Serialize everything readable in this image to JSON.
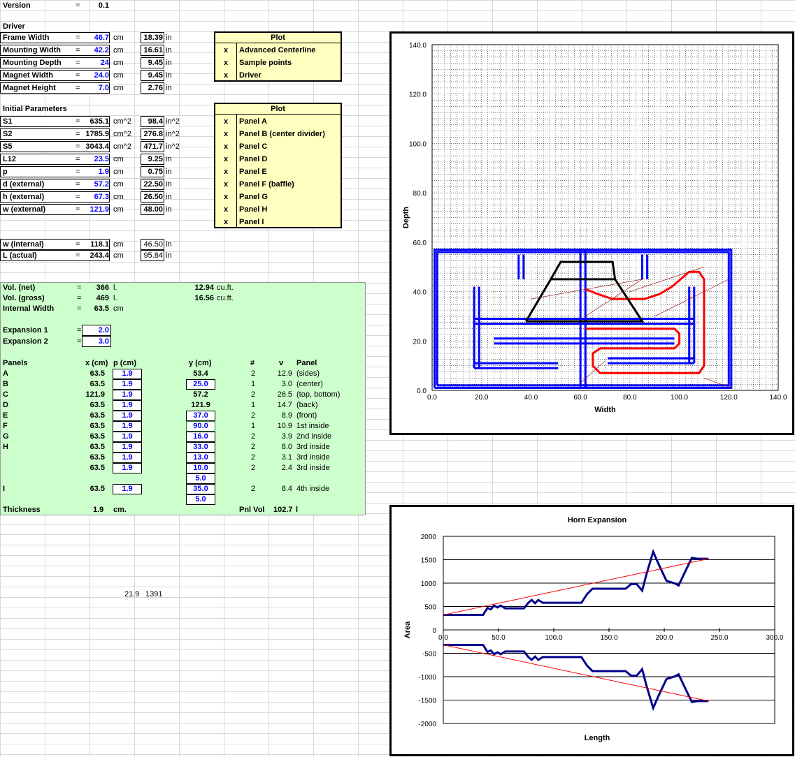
{
  "version": {
    "label": "Version",
    "eq": "=",
    "value": "0.1"
  },
  "driver": {
    "heading": "Driver",
    "rows": [
      {
        "label": "Frame Width",
        "eq": "=",
        "cm": "46.7",
        "cm_unit": "cm",
        "in": "18.39",
        "in_unit": "in"
      },
      {
        "label": "Mounting Width",
        "eq": "=",
        "cm": "42.2",
        "cm_unit": "cm",
        "in": "16.61",
        "in_unit": "in"
      },
      {
        "label": "Mounting Depth",
        "eq": "=",
        "cm": "24",
        "cm_unit": "cm",
        "in": "9.45",
        "in_unit": "in"
      },
      {
        "label": "Magnet Width",
        "eq": "=",
        "cm": "24.0",
        "cm_unit": "cm",
        "in": "9.45",
        "in_unit": "in"
      },
      {
        "label": "Magnet Height",
        "eq": "=",
        "cm": "7.0",
        "cm_unit": "cm",
        "in": "2.76",
        "in_unit": "in"
      }
    ]
  },
  "plot1": {
    "heading": "Plot",
    "items": [
      {
        "mark": "x",
        "label": "Advanced Centerline"
      },
      {
        "mark": "x",
        "label": "Sample points"
      },
      {
        "mark": "x",
        "label": "Driver"
      }
    ]
  },
  "initial": {
    "heading": "Initial Parameters",
    "rows": [
      {
        "label": "S1",
        "eq": "=",
        "v": "635.1",
        "u": "cm^2",
        "iv": "98.4",
        "iu": "in^2"
      },
      {
        "label": "S2",
        "eq": "=",
        "v": "1785.9",
        "u": "cm^2",
        "iv": "276.8",
        "iu": "in^2"
      },
      {
        "label": "S5",
        "eq": "=",
        "v": "3043.4",
        "u": "cm^2",
        "iv": "471.7",
        "iu": "in^2"
      },
      {
        "label": "L12",
        "eq": "=",
        "v": "23.5",
        "u": "cm",
        "iv": "9.25",
        "iu": "in"
      },
      {
        "label": "p",
        "eq": "=",
        "v": "1.9",
        "u": "cm",
        "iv": "0.75",
        "iu": "in"
      },
      {
        "label": "d (external)",
        "eq": "=",
        "v": "57.2",
        "u": "cm",
        "iv": "22.50",
        "iu": "in"
      },
      {
        "label": "h (external)",
        "eq": "=",
        "v": "67.3",
        "u": "cm",
        "iv": "26.50",
        "iu": "in"
      },
      {
        "label": "w (external)",
        "eq": "=",
        "v": "121.9",
        "u": "cm",
        "iv": "48.00",
        "iu": "in"
      }
    ]
  },
  "plot2": {
    "heading": "Plot",
    "items": [
      {
        "mark": "x",
        "label": "Panel A"
      },
      {
        "mark": "x",
        "label": "Panel B (center divider)"
      },
      {
        "mark": "x",
        "label": "Panel C"
      },
      {
        "mark": "x",
        "label": "Panel D"
      },
      {
        "mark": "x",
        "label": "Panel E"
      },
      {
        "mark": "x",
        "label": "Panel F (baffle)"
      },
      {
        "mark": "x",
        "label": "Panel G"
      },
      {
        "mark": "x",
        "label": "Panel H"
      },
      {
        "mark": "x",
        "label": "Panel I"
      }
    ]
  },
  "internal": {
    "rows": [
      {
        "label": "w (internal)",
        "eq": "=",
        "v": "118.1",
        "u": "cm",
        "iv": "46.50",
        "iu": "in"
      },
      {
        "label": "L (actual)",
        "eq": "=",
        "v": "243.4",
        "u": "cm",
        "iv": "95.84",
        "iu": "in"
      }
    ]
  },
  "volume": {
    "rows": [
      {
        "label": "Vol. (net)",
        "eq": "=",
        "v": "366",
        "u": "l.",
        "cf": "12.94",
        "cfu": "cu.ft."
      },
      {
        "label": "Vol. (gross)",
        "eq": "=",
        "v": "469",
        "u": "l.",
        "cf": "16.56",
        "cfu": "cu.ft."
      },
      {
        "label": "Internal Width",
        "eq": "=",
        "v": "63.5",
        "u": "cm",
        "cf": "",
        "cfu": ""
      }
    ]
  },
  "expansion": {
    "rows": [
      {
        "label": "Expansion 1",
        "eq": "=",
        "v": "2.0"
      },
      {
        "label": "Expansion 2",
        "eq": "=",
        "v": "3.0"
      }
    ]
  },
  "panels": {
    "headers": {
      "panels": "Panels",
      "x": "x (cm)",
      "p": "p (cm)",
      "y": "y (cm)",
      "n": "#",
      "v": "v",
      "panel": "Panel"
    },
    "rows": [
      {
        "name": "A",
        "x": "63.5",
        "p": "1.9",
        "y": "53.4",
        "yb": false,
        "n": "2",
        "v": "12.9",
        "d": "(sides)"
      },
      {
        "name": "B",
        "x": "63.5",
        "p": "1.9",
        "y": "25.0",
        "yb": true,
        "n": "1",
        "v": "3.0",
        "d": "(center)"
      },
      {
        "name": "C",
        "x": "121.9",
        "p": "1.9",
        "y": "57.2",
        "yb": false,
        "n": "2",
        "v": "26.5",
        "d": "(top, bottom)"
      },
      {
        "name": "D",
        "x": "63.5",
        "p": "1.9",
        "y": "121.9",
        "yb": false,
        "n": "1",
        "v": "14.7",
        "d": "(back)"
      },
      {
        "name": "E",
        "x": "63.5",
        "p": "1.9",
        "y": "37.0",
        "yb": true,
        "n": "2",
        "v": "8.9",
        "d": "(front)"
      },
      {
        "name": "F",
        "x": "63.5",
        "p": "1.9",
        "y": "90.0",
        "yb": true,
        "n": "1",
        "v": "10.9",
        "d": "1st inside"
      },
      {
        "name": "G",
        "x": "63.5",
        "p": "1.9",
        "y": "16.0",
        "yb": true,
        "n": "2",
        "v": "3.9",
        "d": "2nd inside"
      },
      {
        "name": "H",
        "x": "63.5",
        "p": "1.9",
        "y": "33.0",
        "yb": true,
        "n": "2",
        "v": "8.0",
        "d": "3rd inside"
      },
      {
        "name": "",
        "x": "63.5",
        "p": "1.9",
        "y": "13.0",
        "yb": true,
        "n": "2",
        "v": "3.1",
        "d": "3rd inside"
      },
      {
        "name": "",
        "x": "63.5",
        "p": "1.9",
        "y": "10.0",
        "yb": true,
        "n": "2",
        "v": "2.4",
        "d": "3rd inside"
      },
      {
        "name": "",
        "x": "",
        "p": "",
        "y": "5.0",
        "yb": true,
        "n": "",
        "v": "",
        "d": ""
      },
      {
        "name": "I",
        "x": "63.5",
        "p": "1.9",
        "y": "35.0",
        "yb": true,
        "n": "2",
        "v": "8.4",
        "d": "4th inside"
      },
      {
        "name": "",
        "x": "",
        "p": "",
        "y": "5.0",
        "yb": true,
        "n": "",
        "v": "",
        "d": ""
      }
    ],
    "thickness_label": "Thickness",
    "thickness": "1.9",
    "thickness_unit": "cm.",
    "pnlvol_label": "Pnl Vol",
    "pnlvol": "102.7",
    "pnlvol_unit": "l"
  },
  "misc": {
    "a": "21.9",
    "b": "1391"
  },
  "chart_data": [
    {
      "type": "scatter",
      "title": "",
      "xlabel": "Width",
      "ylabel": "Depth",
      "xlim": [
        0,
        140
      ],
      "ylim": [
        0,
        140
      ],
      "xticks": [
        "0.0",
        "20.0",
        "40.0",
        "60.0",
        "80.0",
        "100.0",
        "120.0",
        "140.0"
      ],
      "yticks": [
        "0.0",
        "20.0",
        "40.0",
        "60.0",
        "80.0",
        "100.0",
        "120.0",
        "140.0"
      ],
      "grid": true,
      "series": [
        {
          "color": "#0000ff",
          "segments": [
            [
              [
                1,
                1
              ],
              [
                121,
                1
              ],
              [
                121,
                57
              ],
              [
                1,
                57
              ],
              [
                1,
                1
              ]
            ],
            [
              [
                2,
                2
              ],
              [
                120,
                2
              ],
              [
                120,
                56
              ],
              [
                2,
                56
              ],
              [
                2,
                2
              ]
            ],
            [
              [
                60,
                1
              ],
              [
                60,
                57
              ]
            ],
            [
              [
                62,
                1
              ],
              [
                62,
                57
              ]
            ],
            [
              [
                17,
                9
              ],
              [
                17,
                42
              ]
            ],
            [
              [
                19,
                9
              ],
              [
                19,
                42
              ]
            ],
            [
              [
                17,
                9
              ],
              [
                51,
                9
              ]
            ],
            [
              [
                17,
                11
              ],
              [
                51,
                11
              ]
            ],
            [
              [
                17,
                27
              ],
              [
                106,
                27
              ]
            ],
            [
              [
                17,
                29
              ],
              [
                106,
                29
              ]
            ],
            [
              [
                25,
                19
              ],
              [
                98,
                19
              ]
            ],
            [
              [
                25,
                21
              ],
              [
                98,
                21
              ]
            ],
            [
              [
                104,
                11
              ],
              [
                104,
                42
              ]
            ],
            [
              [
                106,
                11
              ],
              [
                106,
                42
              ]
            ],
            [
              [
                71,
                11
              ],
              [
                106,
                11
              ]
            ],
            [
              [
                71,
                13
              ],
              [
                106,
                13
              ]
            ],
            [
              [
                35,
                45
              ],
              [
                35,
                55
              ]
            ],
            [
              [
                37,
                45
              ],
              [
                37,
                55
              ]
            ],
            [
              [
                85,
                45
              ],
              [
                85,
                55
              ]
            ],
            [
              [
                87,
                45
              ],
              [
                87,
                55
              ]
            ]
          ]
        },
        {
          "color": "#ff0000",
          "segments": [
            [
              [
                62,
                41
              ],
              [
                67,
                39
              ],
              [
                73,
                37
              ],
              [
                86,
                37
              ],
              [
                92,
                39
              ],
              [
                97,
                42
              ],
              [
                104,
                48
              ],
              [
                108,
                48
              ],
              [
                110,
                45
              ],
              [
                110,
                10
              ],
              [
                108,
                7
              ],
              [
                68,
                7
              ],
              [
                65,
                10
              ],
              [
                65,
                15
              ],
              [
                68,
                17
              ],
              [
                98,
                17
              ],
              [
                100,
                19
              ],
              [
                100,
                23
              ],
              [
                98,
                25
              ],
              [
                62,
                25
              ]
            ]
          ]
        },
        {
          "color": "#000000",
          "segments": [
            [
              [
                38,
                28
              ],
              [
                48,
                45
              ],
              [
                52,
                52
              ],
              [
                73,
                52
              ],
              [
                74,
                45
              ],
              [
                85,
                28
              ],
              [
                38,
                28
              ]
            ],
            [
              [
                48,
                45
              ],
              [
                74,
                45
              ]
            ]
          ]
        },
        {
          "color": "#8b0000",
          "segments": [
            [
              [
                40,
                37
              ],
              [
                85,
                45
              ]
            ],
            [
              [
                62,
                30
              ],
              [
                85,
                45
              ]
            ],
            [
              [
                80,
                40
              ],
              [
                110,
                50
              ]
            ],
            [
              [
                90,
                30
              ],
              [
                120,
                45
              ]
            ],
            [
              [
                60,
                3
              ],
              [
                70,
                12
              ]
            ],
            [
              [
                110,
                5
              ],
              [
                121,
                1
              ]
            ]
          ]
        }
      ]
    },
    {
      "type": "line",
      "title": "Horn Expansion",
      "xlabel": "Length",
      "ylabel": "Area",
      "xlim": [
        0,
        300
      ],
      "ylim": [
        -2000,
        2000
      ],
      "xticks": [
        "0.0",
        "50.0",
        "100.0",
        "150.0",
        "200.0",
        "250.0",
        "300.0"
      ],
      "yticks": [
        "2000",
        "1500",
        "1000",
        "500",
        "0",
        "-500",
        "-1000",
        "-1500",
        "-2000"
      ],
      "series": [
        {
          "color": "#00008b",
          "x": [
            0,
            36,
            40,
            43,
            46,
            49,
            52,
            56,
            73,
            77,
            80,
            83,
            86,
            90,
            96,
            125,
            130,
            135,
            150,
            165,
            170,
            175,
            180,
            184,
            190,
            195,
            202,
            210,
            213,
            218,
            225,
            230,
            240
          ],
          "y": [
            320,
            320,
            470,
            440,
            520,
            480,
            520,
            460,
            460,
            580,
            640,
            570,
            640,
            580,
            580,
            580,
            760,
            880,
            880,
            880,
            980,
            980,
            840,
            1200,
            1670,
            1400,
            1050,
            990,
            950,
            1200,
            1540,
            1520,
            1520
          ]
        },
        {
          "color": "#00008b",
          "x": [
            0,
            36,
            40,
            43,
            46,
            49,
            52,
            56,
            73,
            77,
            80,
            83,
            86,
            90,
            96,
            125,
            130,
            135,
            150,
            165,
            170,
            175,
            180,
            184,
            190,
            195,
            202,
            210,
            213,
            218,
            225,
            230,
            240
          ],
          "y": [
            -320,
            -320,
            -470,
            -440,
            -520,
            -480,
            -520,
            -460,
            -460,
            -580,
            -640,
            -570,
            -640,
            -580,
            -580,
            -580,
            -760,
            -880,
            -880,
            -880,
            -980,
            -980,
            -840,
            -1200,
            -1670,
            -1400,
            -1050,
            -990,
            -950,
            -1200,
            -1540,
            -1520,
            -1520
          ]
        },
        {
          "color": "#ff0000",
          "x": [
            0,
            240
          ],
          "y": [
            320,
            1520
          ]
        },
        {
          "color": "#ff0000",
          "x": [
            0,
            240
          ],
          "y": [
            -320,
            -1520
          ]
        }
      ]
    }
  ]
}
